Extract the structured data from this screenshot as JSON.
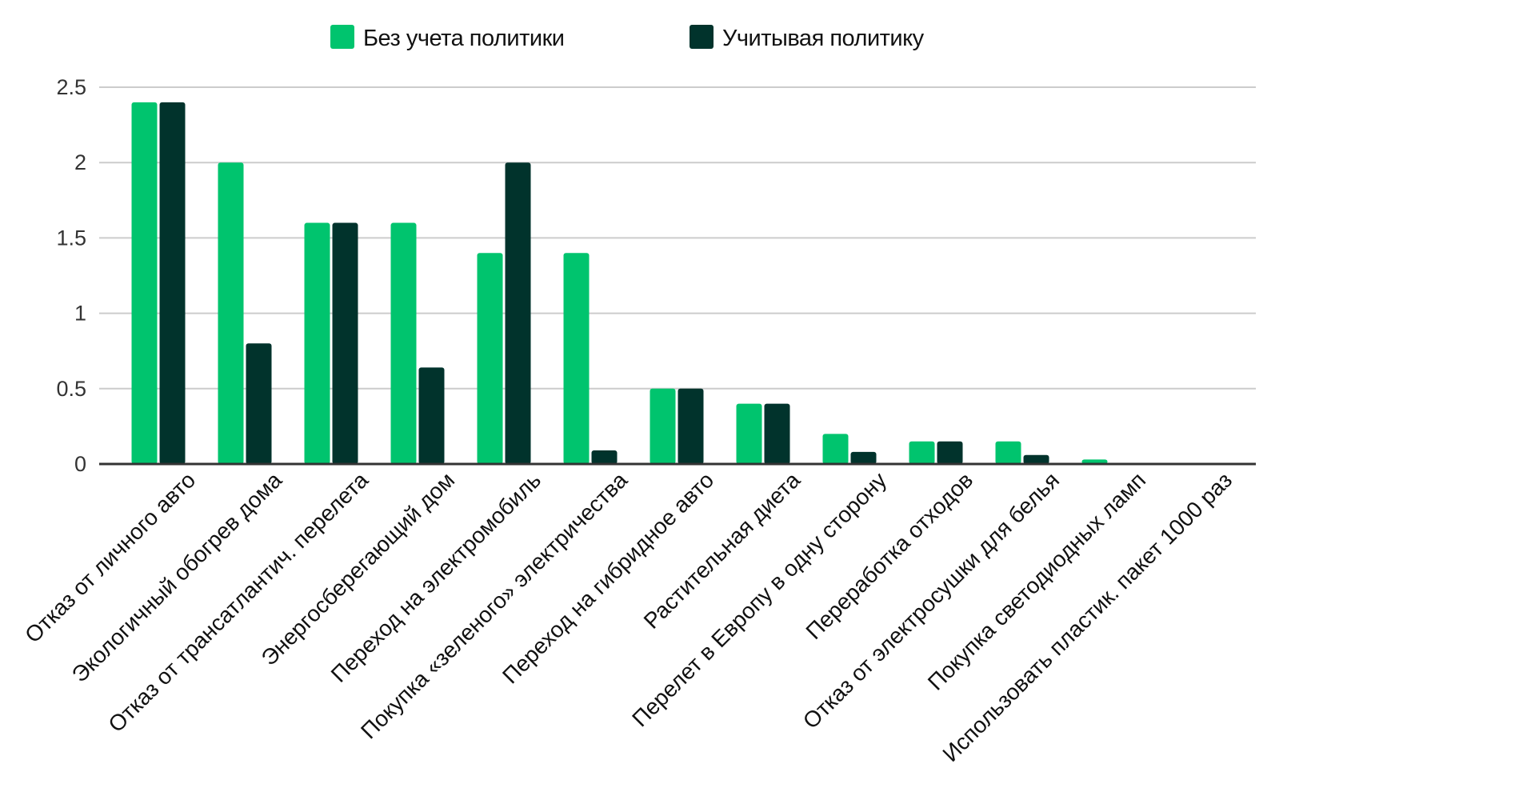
{
  "chart_data": {
    "type": "bar",
    "title": "",
    "xlabel": "",
    "ylabel": "",
    "ylim": [
      0,
      2.5
    ],
    "yticks": [
      "0",
      "0.5",
      "1",
      "1.5",
      "2",
      "2.5"
    ],
    "grid": true,
    "legend_position": "top-center",
    "categories": [
      "Отказ от личного авто",
      "Экологичный обогрев дома",
      "Отказ от трансатлантич. перелета",
      "Энергосберегающий дом",
      "Переход на электромобиль",
      "Покупка «зеленого» электричества",
      "Переход на гибридное авто",
      "Растительная диета",
      "Перелет в Европу в одну сторону",
      "Переработка отходов",
      "Отказ от электросушки для белья",
      "Покупка светодиодных ламп",
      "Использовать пластик. пакет 1000 раз"
    ],
    "series": [
      {
        "name": "Без учета политики",
        "color": "#00c46e",
        "values": [
          2.4,
          2.0,
          1.6,
          1.6,
          1.4,
          1.4,
          0.5,
          0.4,
          0.2,
          0.15,
          0.15,
          0.03,
          0.005
        ]
      },
      {
        "name": "Учитывая политику",
        "color": "#01332c",
        "values": [
          2.4,
          0.8,
          1.6,
          0.64,
          2.0,
          0.09,
          0.5,
          0.4,
          0.08,
          0.15,
          0.06,
          0.005,
          0.002
        ]
      }
    ]
  }
}
